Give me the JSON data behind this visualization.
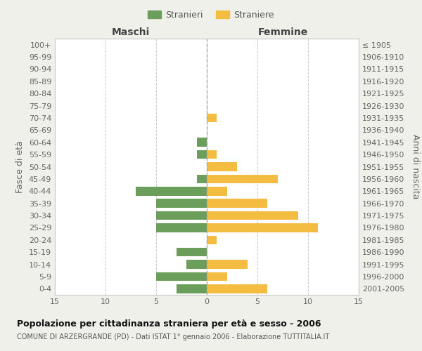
{
  "age_groups": [
    "0-4",
    "5-9",
    "10-14",
    "15-19",
    "20-24",
    "25-29",
    "30-34",
    "35-39",
    "40-44",
    "45-49",
    "50-54",
    "55-59",
    "60-64",
    "65-69",
    "70-74",
    "75-79",
    "80-84",
    "85-89",
    "90-94",
    "95-99",
    "100+"
  ],
  "birth_years": [
    "2001-2005",
    "1996-2000",
    "1991-1995",
    "1986-1990",
    "1981-1985",
    "1976-1980",
    "1971-1975",
    "1966-1970",
    "1961-1965",
    "1956-1960",
    "1951-1955",
    "1946-1950",
    "1941-1945",
    "1936-1940",
    "1931-1935",
    "1926-1930",
    "1921-1925",
    "1916-1920",
    "1911-1915",
    "1906-1910",
    "≤ 1905"
  ],
  "maschi": [
    3,
    5,
    2,
    3,
    0,
    5,
    5,
    5,
    7,
    1,
    0,
    1,
    1,
    0,
    0,
    0,
    0,
    0,
    0,
    0,
    0
  ],
  "femmine": [
    6,
    2,
    4,
    0,
    1,
    11,
    9,
    6,
    2,
    7,
    3,
    1,
    0,
    0,
    1,
    0,
    0,
    0,
    0,
    0,
    0
  ],
  "maschi_color": "#6a9e5a",
  "femmine_color": "#f5bc42",
  "background_color": "#f0f0eb",
  "plot_bg_color": "#ffffff",
  "grid_color": "#cccccc",
  "title": "Popolazione per cittadinanza straniera per età e sesso - 2006",
  "subtitle": "COMUNE DI ARZERGRANDE (PD) - Dati ISTAT 1° gennaio 2006 - Elaborazione TUTTITALIA.IT",
  "xlabel_left": "Maschi",
  "xlabel_right": "Femmine",
  "ylabel_left": "Fasce di età",
  "ylabel_right": "Anni di nascita",
  "legend_maschi": "Stranieri",
  "legend_femmine": "Straniere",
  "xlim": 15
}
